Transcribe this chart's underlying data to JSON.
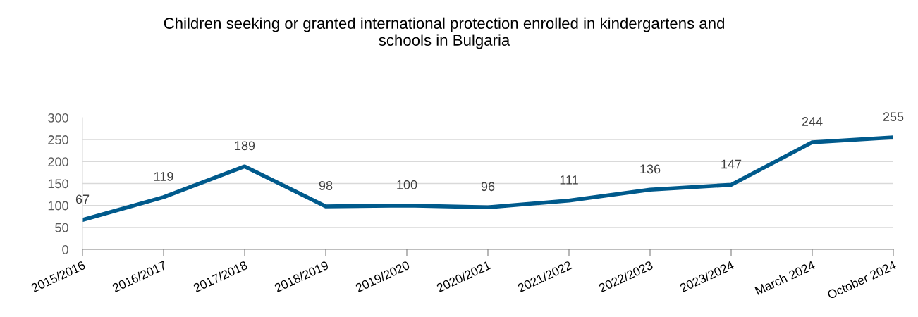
{
  "chart_data": {
    "type": "line",
    "title": "Children seeking or granted international protection enrolled in kindergartens and\nschools in Bulgaria",
    "categories": [
      "2015/2016",
      "2016/2017",
      "2017/2018",
      "2018/2019",
      "2019/2020",
      "2020/2021",
      "2021/2022",
      "2022/2023",
      "2023/2024",
      "March 2024",
      "October 2024"
    ],
    "series": [
      {
        "color": "#005a8c",
        "values": [
          67,
          119,
          189,
          98,
          100,
          96,
          111,
          136,
          147,
          244,
          255
        ]
      }
    ],
    "ylim": [
      0,
      300
    ],
    "yticks": [
      0,
      50,
      100,
      150,
      200,
      250,
      300
    ],
    "grid": "y",
    "data_labels": true,
    "marker": "none",
    "line_style": "solid",
    "legend": false
  }
}
